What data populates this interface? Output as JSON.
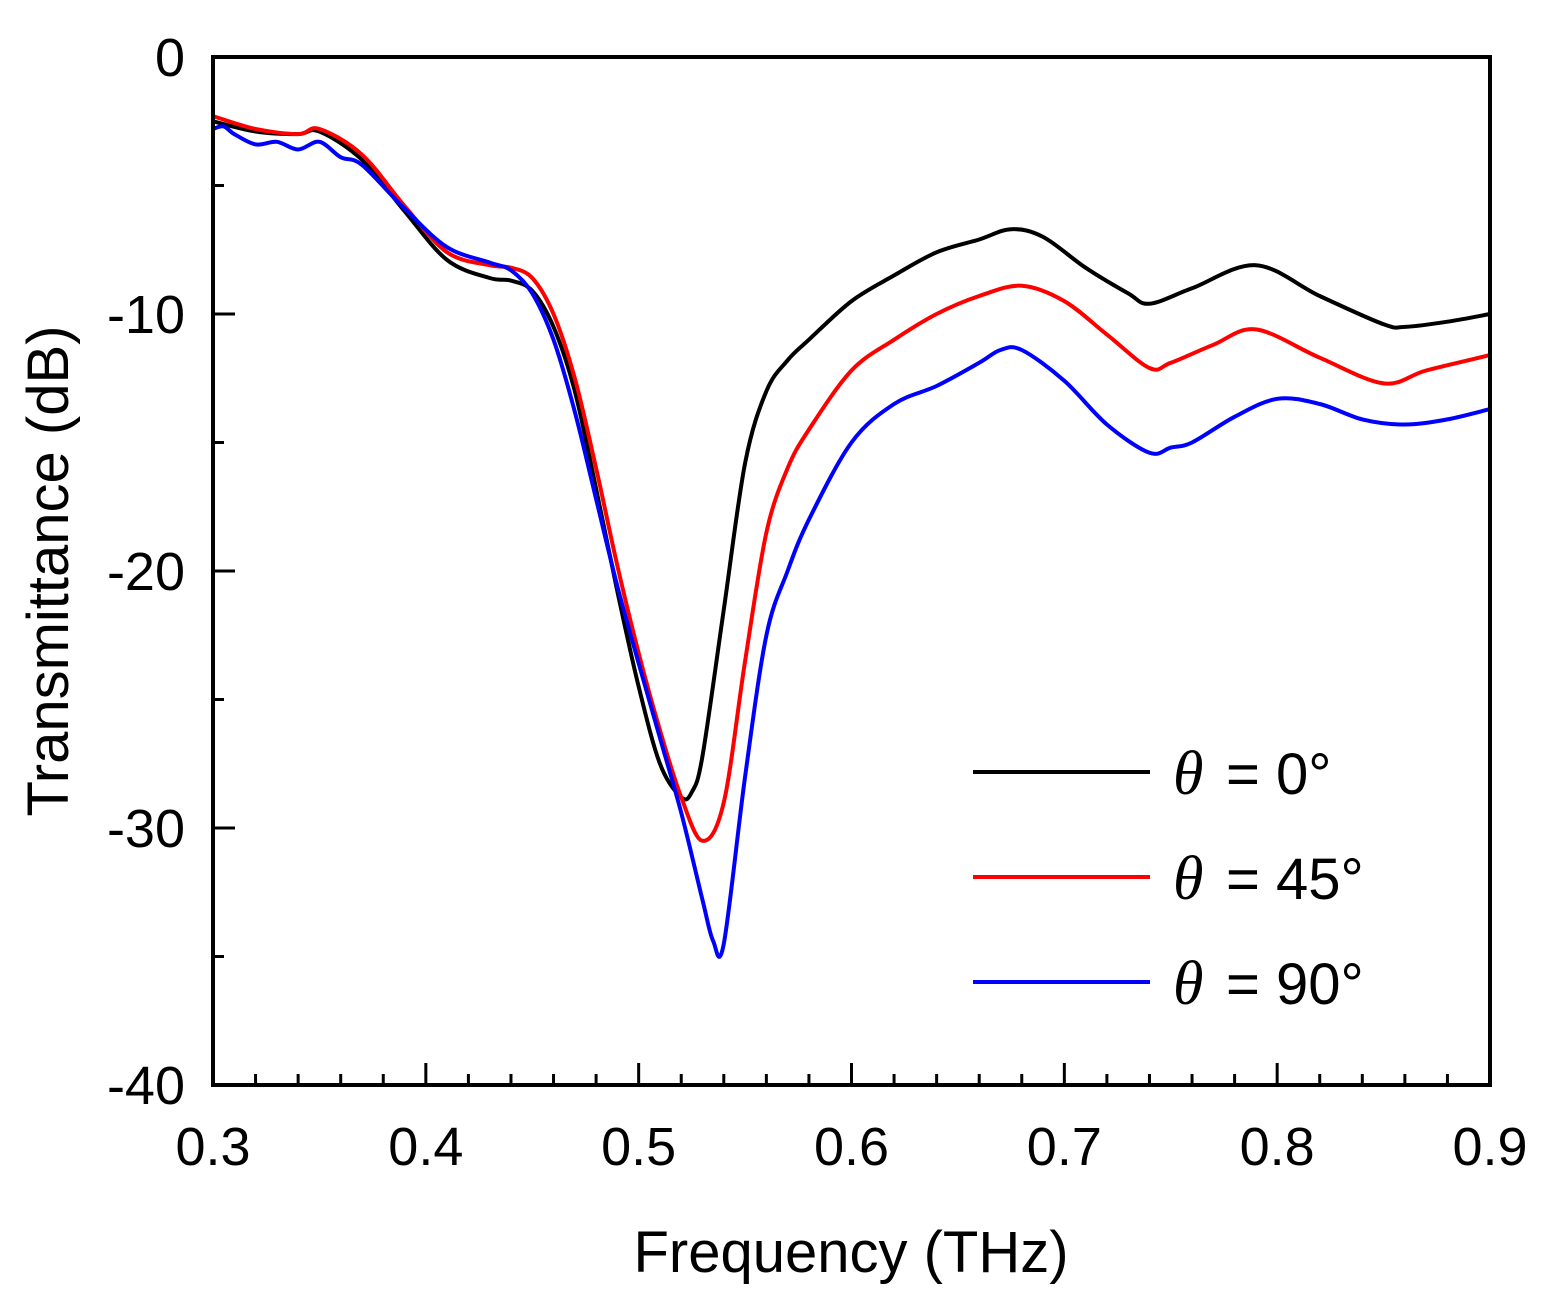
{
  "chart_data": {
    "type": "line",
    "title": "",
    "xlabel": "Frequency (THz)",
    "ylabel": "Transmittance (dB)",
    "xlim": [
      0.3,
      0.9
    ],
    "ylim": [
      -40,
      0
    ],
    "xticks": [
      0.3,
      0.4,
      0.5,
      0.6,
      0.7,
      0.8,
      0.9
    ],
    "xtick_labels": [
      "0.3",
      "0.4",
      "0.5",
      "0.6",
      "0.7",
      "0.8",
      "0.9"
    ],
    "yticks": [
      0,
      -10,
      -20,
      -30,
      -40
    ],
    "ytick_labels": [
      "0",
      "-10",
      "-20",
      "-30",
      "-40"
    ],
    "grid": false,
    "legend_position": "bottom-right",
    "series": [
      {
        "name": "θ = 0°",
        "legend_symbol": "θ",
        "legend_suffix": "= 0°",
        "color": "#000000",
        "x": [
          0.3,
          0.32,
          0.34,
          0.35,
          0.37,
          0.39,
          0.41,
          0.43,
          0.44,
          0.45,
          0.46,
          0.47,
          0.48,
          0.49,
          0.5,
          0.51,
          0.52,
          0.525,
          0.53,
          0.54,
          0.55,
          0.56,
          0.57,
          0.58,
          0.6,
          0.62,
          0.64,
          0.66,
          0.675,
          0.69,
          0.71,
          0.73,
          0.74,
          0.76,
          0.79,
          0.82,
          0.85,
          0.86,
          0.88,
          0.9
        ],
        "y": [
          -2.5,
          -2.9,
          -3.0,
          -2.9,
          -4.0,
          -6.0,
          -7.9,
          -8.6,
          -8.7,
          -9.1,
          -10.5,
          -13.0,
          -16.8,
          -20.8,
          -24.5,
          -27.5,
          -28.8,
          -28.6,
          -27.2,
          -21.5,
          -15.8,
          -13.0,
          -11.8,
          -11.0,
          -9.5,
          -8.5,
          -7.6,
          -7.1,
          -6.7,
          -7.0,
          -8.2,
          -9.2,
          -9.6,
          -9.0,
          -8.1,
          -9.3,
          -10.4,
          -10.5,
          -10.3,
          -10.0
        ]
      },
      {
        "name": "θ = 45°",
        "legend_symbol": "θ",
        "legend_suffix": "= 45°",
        "color": "#ff0000",
        "x": [
          0.3,
          0.32,
          0.34,
          0.35,
          0.37,
          0.39,
          0.41,
          0.43,
          0.44,
          0.45,
          0.46,
          0.47,
          0.48,
          0.49,
          0.5,
          0.51,
          0.52,
          0.53,
          0.54,
          0.55,
          0.56,
          0.57,
          0.58,
          0.6,
          0.62,
          0.64,
          0.66,
          0.68,
          0.7,
          0.72,
          0.74,
          0.75,
          0.77,
          0.79,
          0.82,
          0.85,
          0.87,
          0.9
        ],
        "y": [
          -2.3,
          -2.8,
          -3.0,
          -2.8,
          -3.8,
          -5.8,
          -7.6,
          -8.1,
          -8.2,
          -8.6,
          -10.0,
          -12.5,
          -16.0,
          -19.8,
          -23.2,
          -26.2,
          -28.8,
          -30.5,
          -29.0,
          -23.5,
          -18.5,
          -16.0,
          -14.5,
          -12.2,
          -11.0,
          -10.0,
          -9.3,
          -8.9,
          -9.5,
          -10.8,
          -12.1,
          -11.9,
          -11.2,
          -10.6,
          -11.7,
          -12.7,
          -12.2,
          -11.6
        ]
      },
      {
        "name": "θ = 90°",
        "legend_symbol": "θ",
        "legend_suffix": "= 90°",
        "color": "#0000ff",
        "x": [
          0.3,
          0.305,
          0.31,
          0.32,
          0.33,
          0.34,
          0.35,
          0.36,
          0.37,
          0.39,
          0.41,
          0.43,
          0.44,
          0.45,
          0.46,
          0.47,
          0.48,
          0.49,
          0.5,
          0.51,
          0.52,
          0.53,
          0.535,
          0.54,
          0.55,
          0.56,
          0.57,
          0.58,
          0.6,
          0.62,
          0.64,
          0.66,
          0.67,
          0.68,
          0.7,
          0.72,
          0.74,
          0.75,
          0.76,
          0.78,
          0.8,
          0.82,
          0.84,
          0.86,
          0.88,
          0.9
        ],
        "y": [
          -2.8,
          -2.7,
          -3.0,
          -3.4,
          -3.3,
          -3.6,
          -3.3,
          -3.9,
          -4.2,
          -5.9,
          -7.4,
          -8.0,
          -8.3,
          -9.2,
          -11.0,
          -13.8,
          -17.2,
          -20.6,
          -23.6,
          -26.5,
          -29.4,
          -32.8,
          -34.4,
          -34.5,
          -28.0,
          -22.5,
          -20.0,
          -18.0,
          -15.0,
          -13.5,
          -12.8,
          -11.9,
          -11.4,
          -11.4,
          -12.6,
          -14.3,
          -15.4,
          -15.2,
          -15.0,
          -14.0,
          -13.3,
          -13.5,
          -14.1,
          -14.3,
          -14.1,
          -13.7
        ]
      }
    ]
  }
}
